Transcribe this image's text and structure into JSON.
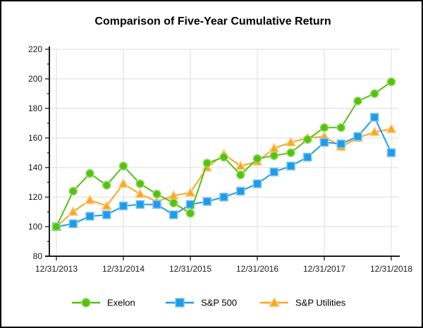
{
  "chart_data": {
    "type": "line",
    "title": "Comparison of Five-Year Cumulative Return",
    "x_axis": {
      "tick_labels": [
        "12/31/2013",
        "12/31/2014",
        "12/31/2015",
        "12/31/2016",
        "12/31/2017",
        "12/31/2018"
      ],
      "frequency": "quarterly",
      "points_per_year": 4
    },
    "y_axis": {
      "min": 80,
      "max": 220,
      "major_step": 20,
      "minor_step": 10,
      "tick_labels": [
        "80",
        "100",
        "120",
        "140",
        "160",
        "180",
        "200",
        "220"
      ]
    },
    "grid": true,
    "legend_position": "bottom",
    "series": [
      {
        "name": "Exelon",
        "marker": "circle",
        "color": "#53c213",
        "edge_color": "#97dc62",
        "values": [
          100,
          124,
          136,
          128,
          141,
          129,
          122,
          116,
          109,
          143,
          147,
          135,
          146,
          148,
          150,
          159,
          167,
          167,
          185,
          190,
          198
        ]
      },
      {
        "name": "S&P 500",
        "marker": "square",
        "color": "#1f9ce9",
        "edge_color": "#7fc6f2",
        "values": [
          100,
          102,
          107,
          108,
          114,
          115,
          115,
          108,
          115,
          117,
          120,
          124,
          129,
          137,
          141,
          147,
          157,
          156,
          161,
          174,
          150
        ]
      },
      {
        "name": "S&P Utilities",
        "marker": "triangle",
        "color": "#fca61f",
        "edge_color": "#fdd086",
        "values": [
          100,
          110,
          118,
          114,
          129,
          122,
          117,
          121,
          123,
          140,
          149,
          141,
          144,
          153,
          157,
          160,
          161,
          154,
          160,
          164,
          166
        ]
      }
    ],
    "style": {
      "grid_color": "#dcdcdc",
      "axis_color": "#1a1a1a",
      "background": "#ffffff"
    }
  }
}
